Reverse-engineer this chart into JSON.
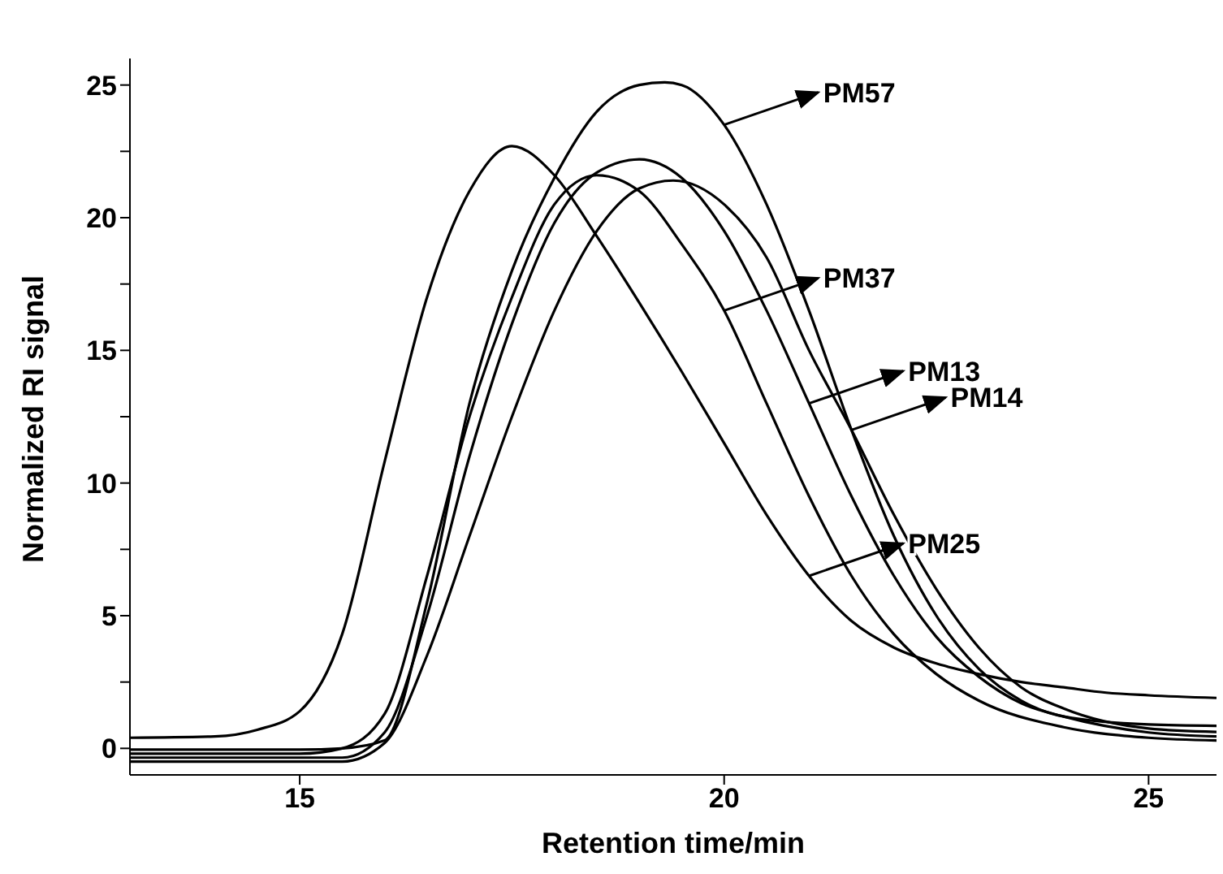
{
  "chart_data": {
    "type": "line",
    "xlabel": "Retention time/min",
    "ylabel": "Normalized RI signal",
    "xlim": [
      13,
      25.8
    ],
    "ylim": [
      -1,
      26
    ],
    "xticks": [
      15,
      20,
      25
    ],
    "yticks": [
      0,
      {
        "value": 2.5,
        "label": null
      },
      5,
      {
        "value": 7.5,
        "label": null
      },
      10,
      {
        "value": 12.5,
        "label": null
      },
      15,
      {
        "value": 17.5,
        "label": null
      },
      20,
      {
        "value": 22.5,
        "label": null
      },
      25
    ],
    "grid": false,
    "legend": false,
    "marker": "none",
    "line_style": "solid",
    "series": [
      {
        "color": "#000000",
        "x": [
          13,
          14,
          14.5,
          15,
          15.5,
          16,
          16.5,
          17,
          17.5,
          18,
          18.5,
          19,
          19.5,
          20,
          20.5,
          21,
          21.5,
          22,
          22.5,
          23,
          23.5,
          24,
          24.5,
          25,
          25.8
        ],
        "values": [
          0.4,
          0.45,
          0.7,
          1.4,
          4.3,
          10.8,
          17,
          21,
          22.7,
          21.6,
          19.3,
          16.8,
          14.2,
          11.5,
          8.8,
          6.5,
          4.8,
          3.8,
          3.2,
          2.8,
          2.5,
          2.3,
          2.1,
          2,
          1.9
        ]
      },
      {
        "color": "#000000",
        "x": [
          13,
          15,
          15.5,
          16,
          16.5,
          17,
          17.5,
          18,
          18.5,
          19,
          19.3,
          19.5,
          20,
          20.5,
          21,
          21.5,
          22,
          22.5,
          23,
          23.5,
          24,
          25,
          25.8
        ],
        "values": [
          -0.05,
          -0.05,
          0,
          0.3,
          5.5,
          13,
          18,
          21.5,
          24,
          25,
          25.1,
          25,
          23.5,
          20.5,
          16.5,
          12,
          8,
          5,
          3,
          1.8,
          1.2,
          0.9,
          0.85
        ]
      },
      {
        "color": "#000000",
        "x": [
          13,
          15,
          15.5,
          16,
          16.5,
          17,
          17.5,
          18,
          18.5,
          19,
          19.5,
          20,
          20.5,
          21,
          21.5,
          22,
          22.5,
          23,
          24,
          25,
          25.8
        ],
        "values": [
          -0.2,
          -0.2,
          0,
          1.3,
          6.5,
          12.5,
          17,
          20.5,
          21.6,
          21,
          19,
          16.5,
          13,
          9.5,
          6.5,
          4.3,
          2.8,
          1.8,
          0.8,
          0.4,
          0.3
        ]
      },
      {
        "color": "#000000",
        "x": [
          13,
          15.5,
          16,
          16.5,
          17,
          17.5,
          18,
          18.5,
          19,
          19.5,
          20,
          20.5,
          21,
          21.5,
          22,
          22.5,
          23,
          23.5,
          24,
          25,
          25.8
        ],
        "values": [
          -0.35,
          -0.35,
          0.6,
          5,
          11,
          16,
          19.8,
          21.7,
          22.2,
          21.5,
          19.5,
          16.5,
          13,
          9.5,
          6.5,
          4.2,
          2.7,
          1.7,
          1.2,
          0.6,
          0.45
        ]
      },
      {
        "color": "#000000",
        "x": [
          13,
          15.5,
          16,
          16.5,
          17,
          17.5,
          18,
          18.5,
          19,
          19.4,
          20,
          20.5,
          21,
          21.5,
          22,
          22.5,
          23,
          23.5,
          24,
          25,
          25.8
        ],
        "values": [
          -0.5,
          -0.5,
          0.2,
          3.5,
          8,
          12.5,
          16.5,
          19.5,
          21.1,
          21.4,
          20.5,
          18.5,
          15,
          12,
          8.8,
          6,
          3.8,
          2.3,
          1.5,
          0.75,
          0.62
        ]
      }
    ],
    "annotations": [
      {
        "text": "PM57",
        "x": 20,
        "y": 23.5
      },
      {
        "text": "PM37",
        "x": 20,
        "y": 16.5
      },
      {
        "text": "PM13",
        "x": 21,
        "y": 13
      },
      {
        "text": "PM14",
        "x": 21.5,
        "y": 12
      },
      {
        "text": "PM25",
        "x": 21,
        "y": 6.5
      }
    ]
  }
}
